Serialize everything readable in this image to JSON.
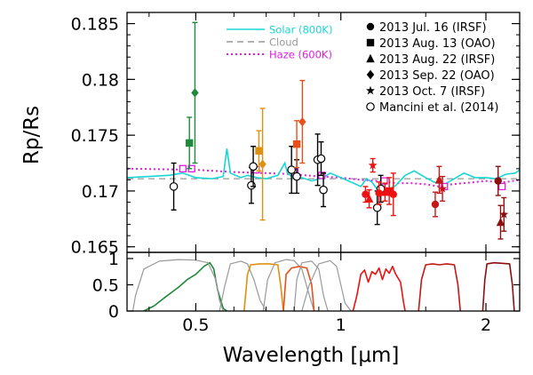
{
  "chart_data": {
    "type": "scatter",
    "xlabel": "Wavelength [μm]",
    "ylabel": "Rp/Rs",
    "xscale": "log",
    "xlim": [
      0.36,
      2.35
    ],
    "ylim": [
      0.1645,
      0.186
    ],
    "grid": false,
    "x_ticks": [
      0.5,
      1,
      2
    ],
    "y_ticks": [
      0.165,
      0.17,
      0.175,
      0.18,
      0.185
    ],
    "y_tick_labels": [
      "0.165",
      "0.17",
      "0.175",
      "0.18",
      "0.185"
    ],
    "x_tick_labels": [
      "0.5",
      "1",
      "2"
    ],
    "legend_position": "top-right",
    "legend_models": [
      {
        "label": "Solar (800K)",
        "color": "#19d6d6",
        "style": "solid"
      },
      {
        "label": "Cloud",
        "color": "#999999",
        "style": "dashed"
      },
      {
        "label": "Haze (600K)",
        "color": "#e01ee0",
        "style": "dotted"
      }
    ],
    "legend_observations": [
      {
        "label": "2013 Jul. 16 (IRSF)",
        "marker": "circle"
      },
      {
        "label": "2013 Aug. 13 (OAO)",
        "marker": "square"
      },
      {
        "label": "2013 Aug. 22 (IRSF)",
        "marker": "triangle"
      },
      {
        "label": "2013 Sep. 22 (OAO)",
        "marker": "diamond"
      },
      {
        "label": "2013 Oct. 7 (IRSF)",
        "marker": "star"
      },
      {
        "label": "Mancini et al. (2014)",
        "marker": "open-circle"
      }
    ],
    "observations": [
      {
        "x": 0.485,
        "y": 0.1743,
        "err": 0.0023,
        "marker": "square",
        "color": "#1f8a3a"
      },
      {
        "x": 0.498,
        "y": 0.1788,
        "err": 0.0063,
        "marker": "diamond",
        "color": "#1f8a3a"
      },
      {
        "x": 0.676,
        "y": 0.1736,
        "err": 0.0018,
        "marker": "square",
        "color": "#e09010"
      },
      {
        "x": 0.688,
        "y": 0.1724,
        "err": 0.005,
        "marker": "diamond",
        "color": "#e09010"
      },
      {
        "x": 0.81,
        "y": 0.1742,
        "err": 0.0021,
        "marker": "square",
        "color": "#e8501a"
      },
      {
        "x": 0.832,
        "y": 0.1762,
        "err": 0.0037,
        "marker": "diamond",
        "color": "#e8501a"
      },
      {
        "x": 1.125,
        "y": 0.1697,
        "err": 0.0007,
        "marker": "circle",
        "color": "#ee1111"
      },
      {
        "x": 1.145,
        "y": 0.1693,
        "err": 0.0008,
        "marker": "triangle",
        "color": "#ee1111"
      },
      {
        "x": 1.165,
        "y": 0.1723,
        "err": 0.0006,
        "marker": "star",
        "color": "#ee1111"
      },
      {
        "x": 1.2,
        "y": 0.1698,
        "err": 0.001,
        "marker": "circle",
        "color": "#ee1111"
      },
      {
        "x": 1.235,
        "y": 0.1699,
        "err": 0.0008,
        "marker": "triangle",
        "color": "#ee1111"
      },
      {
        "x": 1.26,
        "y": 0.17,
        "err": 0.0012,
        "marker": "square",
        "color": "#ee1111"
      },
      {
        "x": 1.285,
        "y": 0.1697,
        "err": 0.0019,
        "marker": "circle",
        "color": "#ee1111"
      },
      {
        "x": 1.57,
        "y": 0.1688,
        "err": 0.0011,
        "marker": "circle",
        "color": "#c41818"
      },
      {
        "x": 1.6,
        "y": 0.171,
        "err": 0.0012,
        "marker": "triangle",
        "color": "#c41818"
      },
      {
        "x": 1.625,
        "y": 0.1702,
        "err": 0.0011,
        "marker": "star",
        "color": "#c41818"
      },
      {
        "x": 2.12,
        "y": 0.1709,
        "err": 0.0013,
        "marker": "circle",
        "color": "#8a0f0f"
      },
      {
        "x": 2.145,
        "y": 0.1672,
        "err": 0.0015,
        "marker": "triangle",
        "color": "#8a0f0f"
      },
      {
        "x": 2.18,
        "y": 0.1679,
        "err": 0.0015,
        "marker": "star",
        "color": "#8a0f0f"
      }
    ],
    "mancini": [
      {
        "x": 0.45,
        "y": 0.1704,
        "err": 0.0021
      },
      {
        "x": 0.652,
        "y": 0.1705,
        "err": 0.0016
      },
      {
        "x": 0.658,
        "y": 0.1722,
        "err": 0.0018
      },
      {
        "x": 0.79,
        "y": 0.1719,
        "err": 0.0021
      },
      {
        "x": 0.81,
        "y": 0.1713,
        "err": 0.0015
      },
      {
        "x": 0.895,
        "y": 0.1728,
        "err": 0.0023
      },
      {
        "x": 0.91,
        "y": 0.1729,
        "err": 0.0015
      },
      {
        "x": 0.92,
        "y": 0.1701,
        "err": 0.0015
      },
      {
        "x": 1.19,
        "y": 0.1685,
        "err": 0.0015
      },
      {
        "x": 1.21,
        "y": 0.1702,
        "err": 0.0012
      }
    ],
    "haze_points": [
      {
        "x": 0.47,
        "y": 0.172
      },
      {
        "x": 0.49,
        "y": 0.172
      },
      {
        "x": 0.667,
        "y": 0.1719
      },
      {
        "x": 0.803,
        "y": 0.1717
      },
      {
        "x": 0.913,
        "y": 0.1714
      },
      {
        "x": 1.23,
        "y": 0.1709
      },
      {
        "x": 1.64,
        "y": 0.1704
      },
      {
        "x": 2.16,
        "y": 0.1704
      }
    ],
    "model_solar": [
      [
        0.36,
        0.1712
      ],
      [
        0.4,
        0.1713
      ],
      [
        0.44,
        0.1714
      ],
      [
        0.47,
        0.1716
      ],
      [
        0.5,
        0.1712
      ],
      [
        0.54,
        0.1711
      ],
      [
        0.57,
        0.1713
      ],
      [
        0.58,
        0.1738
      ],
      [
        0.59,
        0.1716
      ],
      [
        0.62,
        0.1712
      ],
      [
        0.64,
        0.1714
      ],
      [
        0.67,
        0.1712
      ],
      [
        0.7,
        0.1711
      ],
      [
        0.74,
        0.1714
      ],
      [
        0.765,
        0.1725
      ],
      [
        0.775,
        0.1716
      ],
      [
        0.8,
        0.1711
      ],
      [
        0.83,
        0.1712
      ],
      [
        0.87,
        0.1709
      ],
      [
        0.92,
        0.1712
      ],
      [
        0.95,
        0.1716
      ],
      [
        1.0,
        0.1712
      ],
      [
        1.05,
        0.1708
      ],
      [
        1.1,
        0.1704
      ],
      [
        1.13,
        0.1711
      ],
      [
        1.16,
        0.1708
      ],
      [
        1.2,
        0.1699
      ],
      [
        1.25,
        0.1701
      ],
      [
        1.3,
        0.1705
      ],
      [
        1.36,
        0.1714
      ],
      [
        1.42,
        0.1718
      ],
      [
        1.5,
        0.1712
      ],
      [
        1.56,
        0.1708
      ],
      [
        1.64,
        0.1706
      ],
      [
        1.72,
        0.1711
      ],
      [
        1.8,
        0.1716
      ],
      [
        1.9,
        0.1712
      ],
      [
        2.0,
        0.1712
      ],
      [
        2.1,
        0.1711
      ],
      [
        2.2,
        0.1715
      ],
      [
        2.3,
        0.1716
      ],
      [
        2.35,
        0.1719
      ]
    ],
    "model_cloud": [
      [
        0.36,
        0.1711
      ],
      [
        2.35,
        0.1711
      ]
    ],
    "model_haze": [
      [
        0.36,
        0.172
      ],
      [
        0.5,
        0.1719
      ],
      [
        0.6,
        0.1717
      ],
      [
        0.7,
        0.1716
      ],
      [
        0.8,
        0.1715
      ],
      [
        0.9,
        0.1713
      ],
      [
        1.0,
        0.1712
      ],
      [
        1.1,
        0.171
      ],
      [
        1.2,
        0.1709
      ],
      [
        1.3,
        0.1707
      ],
      [
        1.4,
        0.1707
      ],
      [
        1.5,
        0.1706
      ],
      [
        1.6,
        0.1704
      ],
      [
        1.7,
        0.1706
      ],
      [
        1.8,
        0.1707
      ],
      [
        1.9,
        0.1708
      ],
      [
        2.0,
        0.1709
      ],
      [
        2.1,
        0.1708
      ],
      [
        2.2,
        0.1708
      ],
      [
        2.35,
        0.171
      ]
    ],
    "transmission_ylim": [
      0,
      1.05
    ],
    "transmission_y_ticks": [
      0,
      0.5,
      1
    ],
    "transmission_y_tick_labels": [
      "0",
      "0.5",
      "1"
    ],
    "transmission_curves": [
      {
        "color": "#1f8a3a",
        "points": [
          [
            0.39,
            0.0
          ],
          [
            0.41,
            0.1
          ],
          [
            0.43,
            0.25
          ],
          [
            0.46,
            0.45
          ],
          [
            0.48,
            0.6
          ],
          [
            0.5,
            0.7
          ],
          [
            0.52,
            0.85
          ],
          [
            0.535,
            0.92
          ],
          [
            0.545,
            0.8
          ],
          [
            0.555,
            0.4
          ],
          [
            0.57,
            0.05
          ],
          [
            0.58,
            0.0
          ]
        ]
      },
      {
        "color": "#999999",
        "points": [
          [
            0.37,
            0.0
          ],
          [
            0.375,
            0.3
          ],
          [
            0.39,
            0.8
          ],
          [
            0.42,
            0.95
          ],
          [
            0.46,
            0.98
          ],
          [
            0.5,
            0.97
          ],
          [
            0.53,
            0.92
          ],
          [
            0.55,
            0.6
          ],
          [
            0.56,
            0.2
          ],
          [
            0.57,
            0.0
          ]
        ]
      },
      {
        "color": "#999999",
        "points": [
          [
            0.56,
            0.0
          ],
          [
            0.575,
            0.5
          ],
          [
            0.59,
            0.9
          ],
          [
            0.62,
            0.95
          ],
          [
            0.64,
            0.9
          ],
          [
            0.66,
            0.6
          ],
          [
            0.68,
            0.2
          ],
          [
            0.7,
            0.0
          ]
        ]
      },
      {
        "color": "#e09010",
        "points": [
          [
            0.63,
            0.0
          ],
          [
            0.64,
            0.7
          ],
          [
            0.65,
            0.88
          ],
          [
            0.68,
            0.9
          ],
          [
            0.71,
            0.9
          ],
          [
            0.74,
            0.88
          ],
          [
            0.75,
            0.5
          ],
          [
            0.76,
            0.0
          ]
        ]
      },
      {
        "color": "#999999",
        "points": [
          [
            0.69,
            0.0
          ],
          [
            0.705,
            0.6
          ],
          [
            0.73,
            0.92
          ],
          [
            0.77,
            0.98
          ],
          [
            0.8,
            0.96
          ],
          [
            0.83,
            0.8
          ],
          [
            0.86,
            0.3
          ],
          [
            0.88,
            0.0
          ]
        ]
      },
      {
        "color": "#e8501a",
        "points": [
          [
            0.76,
            0.0
          ],
          [
            0.77,
            0.7
          ],
          [
            0.79,
            0.82
          ],
          [
            0.82,
            0.85
          ],
          [
            0.85,
            0.82
          ],
          [
            0.87,
            0.5
          ],
          [
            0.88,
            0.0
          ]
        ]
      },
      {
        "color": "#999999",
        "points": [
          [
            0.8,
            0.0
          ],
          [
            0.81,
            0.6
          ],
          [
            0.83,
            0.92
          ],
          [
            0.87,
            0.95
          ],
          [
            0.9,
            0.8
          ],
          [
            0.92,
            0.3
          ],
          [
            0.94,
            0.0
          ]
        ]
      },
      {
        "color": "#999999",
        "points": [
          [
            0.83,
            0.0
          ],
          [
            0.86,
            0.5
          ],
          [
            0.9,
            0.9
          ],
          [
            0.95,
            0.96
          ],
          [
            0.98,
            0.85
          ],
          [
            1.0,
            0.5
          ],
          [
            1.02,
            0.15
          ],
          [
            1.05,
            0.0
          ]
        ]
      },
      {
        "color": "#ee1111",
        "points": [
          [
            1.06,
            0.0
          ],
          [
            1.08,
            0.3
          ],
          [
            1.1,
            0.7
          ],
          [
            1.12,
            0.78
          ],
          [
            1.14,
            0.55
          ],
          [
            1.16,
            0.75
          ],
          [
            1.18,
            0.7
          ],
          [
            1.2,
            0.82
          ],
          [
            1.22,
            0.6
          ],
          [
            1.24,
            0.8
          ],
          [
            1.26,
            0.72
          ],
          [
            1.28,
            0.85
          ],
          [
            1.3,
            0.7
          ],
          [
            1.33,
            0.55
          ],
          [
            1.35,
            0.15
          ],
          [
            1.36,
            0.0
          ]
        ]
      },
      {
        "color": "#c41818",
        "points": [
          [
            1.45,
            0.0
          ],
          [
            1.47,
            0.6
          ],
          [
            1.5,
            0.88
          ],
          [
            1.55,
            0.9
          ],
          [
            1.6,
            0.88
          ],
          [
            1.66,
            0.9
          ],
          [
            1.72,
            0.88
          ],
          [
            1.75,
            0.5
          ],
          [
            1.77,
            0.0
          ]
        ]
      },
      {
        "color": "#8a0f0f",
        "points": [
          [
            1.97,
            0.0
          ],
          [
            1.99,
            0.6
          ],
          [
            2.01,
            0.9
          ],
          [
            2.08,
            0.92
          ],
          [
            2.16,
            0.91
          ],
          [
            2.24,
            0.9
          ],
          [
            2.27,
            0.5
          ],
          [
            2.29,
            0.0
          ]
        ]
      }
    ]
  }
}
